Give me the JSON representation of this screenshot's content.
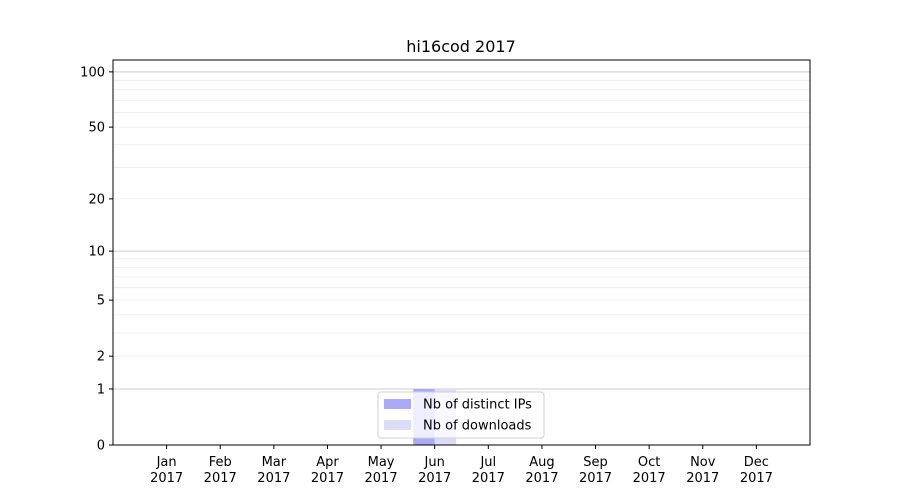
{
  "chart_data": {
    "type": "bar",
    "title": "hi16cod 2017",
    "xlabel": "",
    "ylabel": "",
    "y_scale": "log10(1+y)",
    "ylim": [
      0,
      116
    ],
    "y_ticks": [
      0,
      1,
      2,
      5,
      10,
      20,
      50,
      100
    ],
    "y_tick_labels": [
      "0",
      "1",
      "2",
      "5",
      "10",
      "20",
      "50",
      "100"
    ],
    "grid": true,
    "categories": [
      "Jan\n2017",
      "Feb\n2017",
      "Mar\n2017",
      "Apr\n2017",
      "May\n2017",
      "Jun\n2017",
      "Jul\n2017",
      "Aug\n2017",
      "Sep\n2017",
      "Oct\n2017",
      "Nov\n2017",
      "Dec\n2017"
    ],
    "tick_labels": [
      [
        "Jan",
        "2017"
      ],
      [
        "Feb",
        "2017"
      ],
      [
        "Mar",
        "2017"
      ],
      [
        "Apr",
        "2017"
      ],
      [
        "May",
        "2017"
      ],
      [
        "Jun",
        "2017"
      ],
      [
        "Jul",
        "2017"
      ],
      [
        "Aug",
        "2017"
      ],
      [
        "Sep",
        "2017"
      ],
      [
        "Oct",
        "2017"
      ],
      [
        "Nov",
        "2017"
      ],
      [
        "Dec",
        "2017"
      ]
    ],
    "series": [
      {
        "name": "Nb of distinct IPs",
        "color": "#aaaaf8",
        "values": [
          0,
          0,
          0,
          0,
          0,
          1,
          0,
          0,
          0,
          0,
          0,
          0
        ]
      },
      {
        "name": "Nb of downloads",
        "color": "#dcdcf8",
        "values": [
          0,
          0,
          0,
          0,
          0,
          1,
          0,
          0,
          0,
          0,
          0,
          0
        ]
      }
    ],
    "legend_placement": "bottom-center"
  }
}
